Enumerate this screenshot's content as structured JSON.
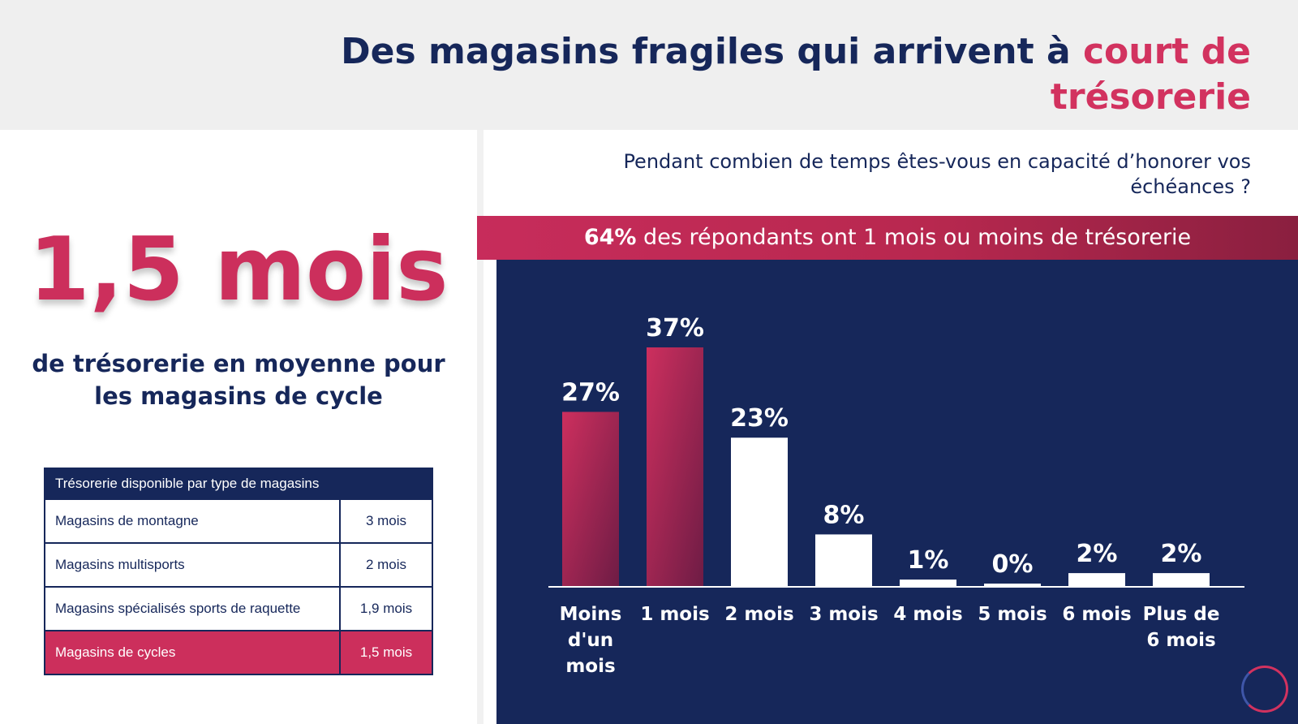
{
  "header": {
    "title_main": "Des magasins fragiles qui arrivent à ",
    "title_accent": "court de trésorerie"
  },
  "left": {
    "big_stat": "1,5 mois",
    "caption": "de trésorerie en moyenne pour les magasins de cycle",
    "table": {
      "header": "Trésorerie disponible par type de magasins",
      "rows": [
        {
          "label": "Magasins de montagne",
          "value": "3 mois"
        },
        {
          "label": "Magasins multisports",
          "value": "2 mois"
        },
        {
          "label": "Magasins spécialisés sports de raquette",
          "value": "1,9 mois"
        },
        {
          "label": "Magasins de cycles",
          "value": "1,5 mois"
        }
      ]
    }
  },
  "right": {
    "question": "Pendant combien de temps êtes-vous en capacité d’honorer vos échéances ?",
    "banner_strong": "64%",
    "banner_text": " des répondants ont 1 mois ou moins de trésorerie"
  },
  "colors": {
    "navy": "#16275a",
    "accent": "#d2325f",
    "bar_highlight": "#cc2f5c",
    "bar_normal": "#ffffff"
  },
  "chart_data": {
    "type": "bar",
    "categories": [
      "Moins d'un mois",
      "1 mois",
      "2 mois",
      "3 mois",
      "4 mois",
      "5 mois",
      "6 mois",
      "Plus de 6 mois"
    ],
    "values": [
      27,
      37,
      23,
      8,
      1,
      0,
      2,
      2
    ],
    "value_labels": [
      "27%",
      "37%",
      "23%",
      "8%",
      "1%",
      "0%",
      "2%",
      "2%"
    ],
    "highlighted": [
      true,
      true,
      false,
      false,
      false,
      false,
      false,
      false
    ],
    "ylim": [
      0,
      37
    ],
    "grid": false
  },
  "logo_icon": "circle-logo-icon"
}
